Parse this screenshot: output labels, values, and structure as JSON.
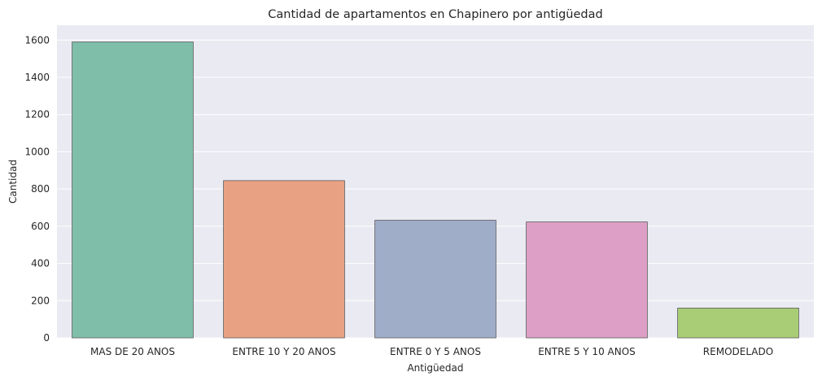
{
  "chart_data": {
    "type": "bar",
    "title": "Cantidad de apartamentos en Chapinero por antigüedad",
    "xlabel": "Antigüedad",
    "ylabel": "Cantidad",
    "categories": [
      "MAS DE 20 ANOS",
      "ENTRE 10 Y 20 ANOS",
      "ENTRE 0 Y 5 ANOS",
      "ENTRE 5 Y 10 ANOS",
      "REMODELADO"
    ],
    "values": [
      1590,
      845,
      632,
      623,
      160
    ],
    "colors": [
      "#7fbfaa",
      "#e9a184",
      "#9fadc9",
      "#dd9fc6",
      "#a9cc76"
    ],
    "ylim": [
      0,
      1680
    ],
    "yticks": [
      0,
      200,
      400,
      600,
      800,
      1000,
      1200,
      1400,
      1600
    ],
    "grid": true,
    "background": "#eaeaf2"
  }
}
